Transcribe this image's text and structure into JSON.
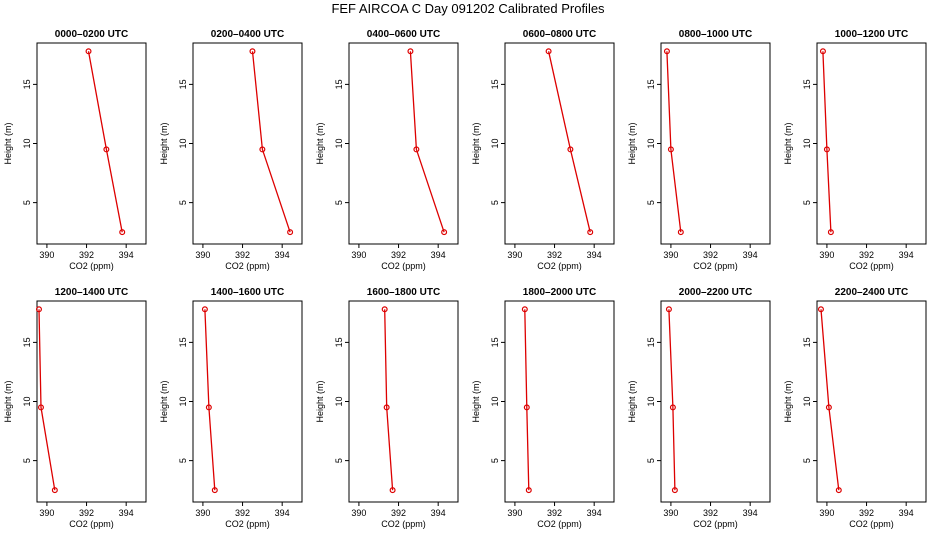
{
  "figure_title": "FEF AIRCOA C  Day 091202  Calibrated Profiles",
  "colors": {
    "series": "#dd0000",
    "axis": "#000000"
  },
  "chart_data": [
    {
      "type": "line",
      "title": "0000–0200 UTC",
      "xlabel": "CO2 (ppm)",
      "ylabel": "Height (m)",
      "xlim": [
        389.5,
        395
      ],
      "ylim": [
        1.5,
        18.5
      ],
      "xticks": [
        "390",
        "392",
        "394"
      ],
      "yticks": [
        "5",
        "10",
        "15"
      ],
      "grid": false,
      "x": [
        392.1,
        393.0,
        393.8
      ],
      "y": [
        17.8,
        9.5,
        2.5
      ]
    },
    {
      "type": "line",
      "title": "0200–0400 UTC",
      "xlabel": "CO2 (ppm)",
      "ylabel": "Height (m)",
      "xlim": [
        389.5,
        395
      ],
      "ylim": [
        1.5,
        18.5
      ],
      "xticks": [
        "390",
        "392",
        "394"
      ],
      "yticks": [
        "5",
        "10",
        "15"
      ],
      "grid": false,
      "x": [
        392.5,
        393.0,
        394.4
      ],
      "y": [
        17.8,
        9.5,
        2.5
      ]
    },
    {
      "type": "line",
      "title": "0400–0600 UTC",
      "xlabel": "CO2 (ppm)",
      "ylabel": "Height (m)",
      "xlim": [
        389.5,
        395
      ],
      "ylim": [
        1.5,
        18.5
      ],
      "xticks": [
        "390",
        "392",
        "394"
      ],
      "yticks": [
        "5",
        "10",
        "15"
      ],
      "grid": false,
      "x": [
        392.6,
        392.9,
        394.3
      ],
      "y": [
        17.8,
        9.5,
        2.5
      ]
    },
    {
      "type": "line",
      "title": "0600–0800 UTC",
      "xlabel": "CO2 (ppm)",
      "ylabel": "Height (m)",
      "xlim": [
        389.5,
        395
      ],
      "ylim": [
        1.5,
        18.5
      ],
      "xticks": [
        "390",
        "392",
        "394"
      ],
      "yticks": [
        "5",
        "10",
        "15"
      ],
      "grid": false,
      "x": [
        391.7,
        392.8,
        393.8
      ],
      "y": [
        17.8,
        9.5,
        2.5
      ]
    },
    {
      "type": "line",
      "title": "0800–1000 UTC",
      "xlabel": "CO2 (ppm)",
      "ylabel": "Height (m)",
      "xlim": [
        389.5,
        395
      ],
      "ylim": [
        1.5,
        18.5
      ],
      "xticks": [
        "390",
        "392",
        "394"
      ],
      "yticks": [
        "5",
        "10",
        "15"
      ],
      "grid": false,
      "x": [
        389.8,
        390.0,
        390.5
      ],
      "y": [
        17.8,
        9.5,
        2.5
      ]
    },
    {
      "type": "line",
      "title": "1000–1200 UTC",
      "xlabel": "CO2 (ppm)",
      "ylabel": "Height (m)",
      "xlim": [
        389.5,
        395
      ],
      "ylim": [
        1.5,
        18.5
      ],
      "xticks": [
        "390",
        "392",
        "394"
      ],
      "yticks": [
        "5",
        "10",
        "15"
      ],
      "grid": false,
      "x": [
        389.8,
        390.0,
        390.2
      ],
      "y": [
        17.8,
        9.5,
        2.5
      ]
    },
    {
      "type": "line",
      "title": "1200–1400 UTC",
      "xlabel": "CO2 (ppm)",
      "ylabel": "Height (m)",
      "xlim": [
        389.5,
        395
      ],
      "ylim": [
        1.5,
        18.5
      ],
      "xticks": [
        "390",
        "392",
        "394"
      ],
      "yticks": [
        "5",
        "10",
        "15"
      ],
      "grid": false,
      "x": [
        389.6,
        389.7,
        390.4
      ],
      "y": [
        17.8,
        9.5,
        2.5
      ]
    },
    {
      "type": "line",
      "title": "1400–1600 UTC",
      "xlabel": "CO2 (ppm)",
      "ylabel": "Height (m)",
      "xlim": [
        389.5,
        395
      ],
      "ylim": [
        1.5,
        18.5
      ],
      "xticks": [
        "390",
        "392",
        "394"
      ],
      "yticks": [
        "5",
        "10",
        "15"
      ],
      "grid": false,
      "x": [
        390.1,
        390.3,
        390.6
      ],
      "y": [
        17.8,
        9.5,
        2.5
      ]
    },
    {
      "type": "line",
      "title": "1600–1800 UTC",
      "xlabel": "CO2 (ppm)",
      "ylabel": "Height (m)",
      "xlim": [
        389.5,
        395
      ],
      "ylim": [
        1.5,
        18.5
      ],
      "xticks": [
        "390",
        "392",
        "394"
      ],
      "yticks": [
        "5",
        "10",
        "15"
      ],
      "grid": false,
      "x": [
        391.3,
        391.4,
        391.7
      ],
      "y": [
        17.8,
        9.5,
        2.5
      ]
    },
    {
      "type": "line",
      "title": "1800–2000 UTC",
      "xlabel": "CO2 (ppm)",
      "ylabel": "Height (m)",
      "xlim": [
        389.5,
        395
      ],
      "ylim": [
        1.5,
        18.5
      ],
      "xticks": [
        "390",
        "392",
        "394"
      ],
      "yticks": [
        "5",
        "10",
        "15"
      ],
      "grid": false,
      "x": [
        390.5,
        390.6,
        390.7
      ],
      "y": [
        17.8,
        9.5,
        2.5
      ]
    },
    {
      "type": "line",
      "title": "2000–2200 UTC",
      "xlabel": "CO2 (ppm)",
      "ylabel": "Height (m)",
      "xlim": [
        389.5,
        395
      ],
      "ylim": [
        1.5,
        18.5
      ],
      "xticks": [
        "390",
        "392",
        "394"
      ],
      "yticks": [
        "5",
        "10",
        "15"
      ],
      "grid": false,
      "x": [
        389.9,
        390.1,
        390.2
      ],
      "y": [
        17.8,
        9.5,
        2.5
      ]
    },
    {
      "type": "line",
      "title": "2200–2400 UTC",
      "xlabel": "CO2 (ppm)",
      "ylabel": "Height (m)",
      "xlim": [
        389.5,
        395
      ],
      "ylim": [
        1.5,
        18.5
      ],
      "xticks": [
        "390",
        "392",
        "394"
      ],
      "yticks": [
        "5",
        "10",
        "15"
      ],
      "grid": false,
      "x": [
        389.7,
        390.1,
        390.6
      ],
      "y": [
        17.8,
        9.5,
        2.5
      ]
    }
  ]
}
